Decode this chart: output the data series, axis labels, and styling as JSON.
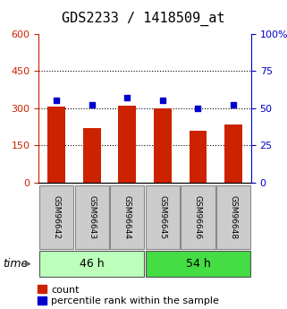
{
  "title": "GDS2233 / 1418509_at",
  "samples": [
    "GSM96642",
    "GSM96643",
    "GSM96644",
    "GSM96645",
    "GSM96646",
    "GSM96648"
  ],
  "counts": [
    305,
    220,
    310,
    298,
    210,
    235
  ],
  "percentiles": [
    55,
    52,
    57,
    55,
    50,
    52
  ],
  "groups": [
    {
      "label": "46 h",
      "indices": [
        0,
        1,
        2
      ]
    },
    {
      "label": "54 h",
      "indices": [
        3,
        4,
        5
      ]
    }
  ],
  "ylim_left": [
    0,
    600
  ],
  "ylim_right": [
    0,
    100
  ],
  "yticks_left": [
    0,
    150,
    300,
    450,
    600
  ],
  "yticks_right": [
    0,
    25,
    50,
    75,
    100
  ],
  "bar_color": "#cc2200",
  "dot_color": "#0000cc",
  "group_color_light": "#bbffbb",
  "group_color_medium": "#44dd44",
  "tick_bg_color": "#cccccc",
  "title_fontsize": 11,
  "tick_fontsize": 8,
  "legend_fontsize": 8,
  "group_fontsize": 9,
  "sample_fontsize": 6.5,
  "time_fontsize": 9
}
